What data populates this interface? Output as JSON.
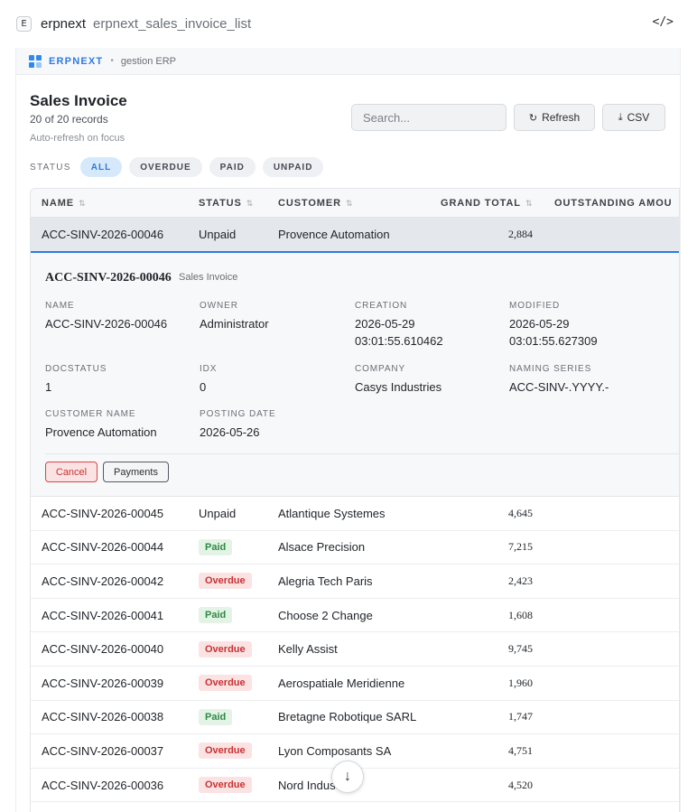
{
  "app": {
    "badge": "E",
    "name": "erpnext",
    "view": "erpnext_sales_invoice_list",
    "code_icon": "</>"
  },
  "brand": {
    "name": "ERPNEXT",
    "dot": "•",
    "tagline": "gestion ERP"
  },
  "page": {
    "title": "Sales Invoice",
    "count": "20 of 20 records",
    "auto_refresh": "Auto-refresh on focus"
  },
  "search": {
    "placeholder": "Search...",
    "value": ""
  },
  "toolbar": {
    "refresh_label": "Refresh",
    "csv_label": "CSV"
  },
  "filters": {
    "label": "STATUS",
    "chips": [
      "ALL",
      "OVERDUE",
      "PAID",
      "UNPAID"
    ],
    "active": "ALL"
  },
  "table": {
    "columns": [
      "NAME",
      "STATUS",
      "CUSTOMER",
      "GRAND TOTAL",
      "OUTSTANDING AMOU"
    ],
    "selected": {
      "name": "ACC-SINV-2026-00046",
      "status": "Unpaid",
      "customer": "Provence Automation",
      "total": "2,884"
    },
    "rows": [
      {
        "name": "ACC-SINV-2026-00045",
        "status": "Unpaid",
        "customer": "Atlantique Systemes",
        "total": "4,645"
      },
      {
        "name": "ACC-SINV-2026-00044",
        "status": "Paid",
        "customer": "Alsace Precision",
        "total": "7,215"
      },
      {
        "name": "ACC-SINV-2026-00042",
        "status": "Overdue",
        "customer": "Alegria Tech Paris",
        "total": "2,423"
      },
      {
        "name": "ACC-SINV-2026-00041",
        "status": "Paid",
        "customer": "Choose 2 Change",
        "total": "1,608"
      },
      {
        "name": "ACC-SINV-2026-00040",
        "status": "Overdue",
        "customer": "Kelly Assist",
        "total": "9,745"
      },
      {
        "name": "ACC-SINV-2026-00039",
        "status": "Overdue",
        "customer": "Aerospatiale Meridienne",
        "total": "1,960"
      },
      {
        "name": "ACC-SINV-2026-00038",
        "status": "Paid",
        "customer": "Bretagne Robotique SARL",
        "total": "1,747"
      },
      {
        "name": "ACC-SINV-2026-00037",
        "status": "Overdue",
        "customer": "Lyon Composants SA",
        "total": "4,751"
      },
      {
        "name": "ACC-SINV-2026-00036",
        "status": "Overdue",
        "customer": "Nord Indus",
        "total": "4,520"
      }
    ]
  },
  "detail": {
    "title": "ACC-SINV-2026-00046",
    "doctype": "Sales Invoice",
    "fields": {
      "name": {
        "label": "NAME",
        "value": "ACC-SINV-2026-00046"
      },
      "owner": {
        "label": "OWNER",
        "value": "Administrator"
      },
      "creation": {
        "label": "CREATION",
        "value": "2026-05-29 03:01:55.610462"
      },
      "modified": {
        "label": "MODIFIED",
        "value": "2026-05-29 03:01:55.627309"
      },
      "docstatus": {
        "label": "DOCSTATUS",
        "value": "1"
      },
      "idx": {
        "label": "IDX",
        "value": "0"
      },
      "company": {
        "label": "COMPANY",
        "value": "Casys Industries"
      },
      "naming_series": {
        "label": "NAMING SERIES",
        "value": "ACC-SINV-.YYYY.-"
      },
      "customer_name": {
        "label": "CUSTOMER NAME",
        "value": "Provence Automation"
      },
      "posting_date": {
        "label": "POSTING DATE",
        "value": "2026-05-26"
      }
    },
    "actions": {
      "cancel": "Cancel",
      "payments": "Payments"
    }
  },
  "colors": {
    "accent": "#2e7be0",
    "paid_bg": "#e3f4e6",
    "paid_fg": "#2f8a43",
    "overdue_bg": "#fbe3e3",
    "overdue_fg": "#c83232"
  },
  "icons": {
    "refresh": "refresh-icon",
    "download": "download-icon",
    "sort": "sort-icon",
    "scroll": "arrow-down-icon"
  }
}
